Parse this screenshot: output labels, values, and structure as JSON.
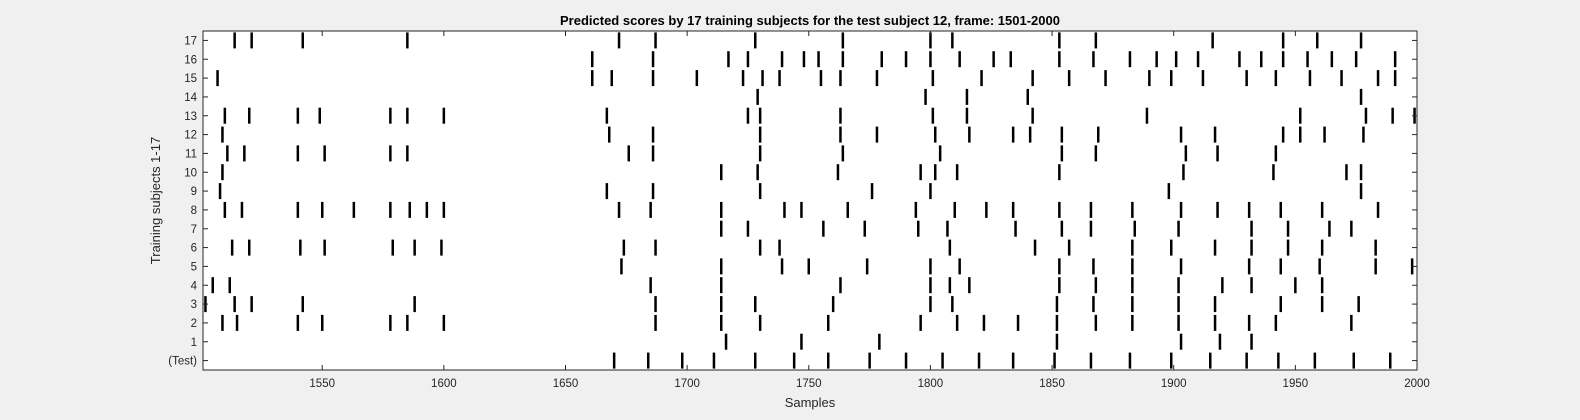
{
  "chart_data": {
    "type": "scatter",
    "title": "Predicted scores by 17 training subjects for the test subject 12, frame: 1501-2000",
    "xlabel": "Samples",
    "ylabel": "Training subjects 1-17",
    "xlim": [
      1501,
      2000
    ],
    "xticks": [
      1550,
      1600,
      1650,
      1700,
      1750,
      1800,
      1850,
      1900,
      1950,
      2000
    ],
    "yticklabels": [
      "(Test)",
      "1",
      "2",
      "3",
      "4",
      "5",
      "6",
      "7",
      "8",
      "9",
      "10",
      "11",
      "12",
      "13",
      "14",
      "15",
      "16",
      "17"
    ],
    "grid": false,
    "legend": "none",
    "colors": {
      "background": "#f0f0f0",
      "plot_area": "#ffffff",
      "event": "#000000"
    },
    "series": [
      {
        "row": "(Test)",
        "x": [
          1670,
          1684,
          1698,
          1711,
          1728,
          1744,
          1758,
          1775,
          1790,
          1805,
          1820,
          1834,
          1851,
          1866,
          1882,
          1899,
          1915,
          1930,
          1943,
          1958,
          1974,
          1989
        ]
      },
      {
        "row": "1",
        "x": [
          1716,
          1747,
          1779,
          1852,
          1903,
          1919,
          1932
        ]
      },
      {
        "row": "2",
        "x": [
          1509,
          1515,
          1540,
          1550,
          1578,
          1585,
          1600,
          1687,
          1714,
          1730,
          1758,
          1796,
          1811,
          1822,
          1836,
          1852,
          1868,
          1883,
          1902,
          1917,
          1931,
          1942,
          1973
        ]
      },
      {
        "row": "3",
        "x": [
          1502,
          1514,
          1521,
          1542,
          1588,
          1687,
          1714,
          1728,
          1760,
          1800,
          1809,
          1852,
          1867,
          1883,
          1902,
          1917,
          1944,
          1961,
          1976
        ]
      },
      {
        "row": "4",
        "x": [
          1505,
          1512,
          1685,
          1714,
          1763,
          1800,
          1808,
          1816,
          1853,
          1868,
          1883,
          1902,
          1920,
          1932,
          1950,
          1961
        ]
      },
      {
        "row": "5",
        "x": [
          1673,
          1714,
          1739,
          1750,
          1774,
          1800,
          1812,
          1853,
          1867,
          1883,
          1903,
          1931,
          1944,
          1960,
          1983,
          1998
        ]
      },
      {
        "row": "6",
        "x": [
          1513,
          1520,
          1541,
          1551,
          1579,
          1588,
          1599,
          1674,
          1687,
          1730,
          1738,
          1808,
          1843,
          1857,
          1883,
          1899,
          1917,
          1932,
          1947,
          1961,
          1983
        ]
      },
      {
        "row": "7",
        "x": [
          1714,
          1725,
          1756,
          1773,
          1795,
          1807,
          1835,
          1854,
          1866,
          1884,
          1902,
          1932,
          1947,
          1964,
          1973
        ]
      },
      {
        "row": "8",
        "x": [
          1510,
          1517,
          1540,
          1550,
          1563,
          1578,
          1586,
          1593,
          1600,
          1672,
          1685,
          1714,
          1740,
          1747,
          1766,
          1794,
          1810,
          1823,
          1834,
          1853,
          1866,
          1883,
          1903,
          1918,
          1931,
          1944,
          1961,
          1984
        ]
      },
      {
        "row": "9",
        "x": [
          1508,
          1667,
          1686,
          1730,
          1776,
          1800,
          1898,
          1977
        ]
      },
      {
        "row": "10",
        "x": [
          1509,
          1714,
          1729,
          1762,
          1796,
          1802,
          1811,
          1853,
          1904,
          1941,
          1971,
          1977
        ]
      },
      {
        "row": "11",
        "x": [
          1511,
          1518,
          1540,
          1551,
          1578,
          1585,
          1676,
          1686,
          1730,
          1764,
          1804,
          1854,
          1868,
          1905,
          1918,
          1942
        ]
      },
      {
        "row": "12",
        "x": [
          1509,
          1668,
          1686,
          1730,
          1763,
          1778,
          1802,
          1816,
          1834,
          1841,
          1854,
          1869,
          1903,
          1917,
          1945,
          1952,
          1962,
          1978
        ]
      },
      {
        "row": "13",
        "x": [
          1510,
          1520,
          1540,
          1549,
          1578,
          1585,
          1600,
          1667,
          1725,
          1730,
          1763,
          1801,
          1815,
          1842,
          1889,
          1952,
          1979,
          1990,
          2000
        ]
      },
      {
        "row": "14",
        "x": [
          1729,
          1798,
          1815,
          1840,
          1977
        ]
      },
      {
        "row": "15",
        "x": [
          1507,
          1661,
          1669,
          1686,
          1704,
          1723,
          1731,
          1738,
          1755,
          1763,
          1778,
          1801,
          1821,
          1842,
          1857,
          1872,
          1890,
          1899,
          1912,
          1930,
          1942,
          1956,
          1969,
          1984,
          1991
        ]
      },
      {
        "row": "16",
        "x": [
          1661,
          1686,
          1717,
          1725,
          1739,
          1748,
          1754,
          1764,
          1780,
          1790,
          1800,
          1812,
          1826,
          1833,
          1853,
          1867,
          1882,
          1893,
          1901,
          1910,
          1927,
          1936,
          1945,
          1955,
          1965,
          1975,
          1991
        ]
      },
      {
        "row": "17",
        "x": [
          1514,
          1521,
          1542,
          1585,
          1672,
          1687,
          1728,
          1764,
          1800,
          1809,
          1853,
          1868,
          1916,
          1945,
          1959,
          1977
        ]
      }
    ]
  }
}
